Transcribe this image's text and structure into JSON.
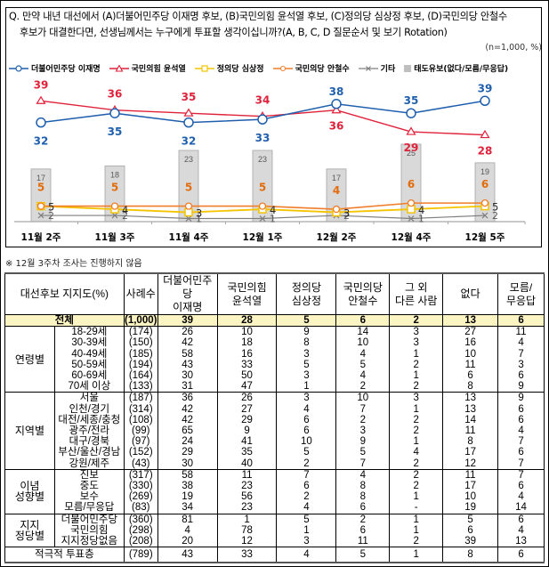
{
  "question": {
    "line1": "Q. 만약 내년 대선에서 (A)더불어민주당 이재명 후보, (B)국민의힘 윤석열 후보, (C)정의당 심상정 후보, (D)국민의당 안철수",
    "line2": "후보가 대결한다면, 선생님께서는 누구에게 투표할 생각이십니까?(A, B, C, D 질문순서 및 보기 Rotation)",
    "sample_note": "(n=1,000, %)"
  },
  "legend": [
    {
      "label": "더불어민주당 이재명",
      "color": "#1f5fad",
      "marker": "circle"
    },
    {
      "label": "국민의힘 윤석열",
      "color": "#e0213a",
      "marker": "triangle"
    },
    {
      "label": "정의당 심상정",
      "color": "#f5c400",
      "marker": "square"
    },
    {
      "label": "국민의당 안철수",
      "color": "#ef7d2a",
      "marker": "circle"
    },
    {
      "label": "기타",
      "color": "#7f7f7f",
      "marker": "x"
    },
    {
      "label": "태도유보(없다/모름/무응답)",
      "color": "#bfbfbf",
      "marker": "bar"
    }
  ],
  "chart_data": {
    "type": "line",
    "title": "",
    "categories": [
      "11월 2주",
      "11월 3주",
      "11월 4주",
      "12월 1주",
      "12월 2주",
      "12월 4주",
      "12월 5주"
    ],
    "series": [
      {
        "name": "더불어민주당 이재명",
        "type": "line",
        "color": "#1f5fad",
        "values": [
          32,
          35,
          32,
          33,
          38,
          35,
          39
        ]
      },
      {
        "name": "국민의힘 윤석열",
        "type": "line",
        "color": "#e0213a",
        "values": [
          39,
          36,
          35,
          34,
          36,
          29,
          28
        ]
      },
      {
        "name": "정의당 심상정",
        "type": "line",
        "color": "#f5c400",
        "values": [
          5,
          4,
          3,
          4,
          3,
          4,
          5
        ]
      },
      {
        "name": "국민의당 안철수",
        "type": "line",
        "color": "#ef7d2a",
        "values": [
          5,
          5,
          5,
          5,
          4,
          6,
          6
        ]
      },
      {
        "name": "기타",
        "type": "line",
        "color": "#7f7f7f",
        "values": [
          2,
          2,
          1,
          1,
          2,
          1,
          2
        ]
      },
      {
        "name": "태도유보(없다/모름/무응답)",
        "type": "bar",
        "color": "#d9d9d9",
        "values": [
          17,
          18,
          23,
          23,
          17,
          25,
          19
        ]
      }
    ],
    "xlabel": "",
    "ylabel": "",
    "grid": false,
    "legend_position": "top",
    "unit": "%"
  },
  "footnote": "※ 12월 3주차 조사는 진행하지 않음",
  "table": {
    "headers": {
      "category": "대선후보 지지도(%)",
      "n": "사례수",
      "lee1": "더불어민주당",
      "lee2": "이재명",
      "yoon1": "국민의힘",
      "yoon2": "윤석열",
      "sim1": "정의당",
      "sim2": "심상정",
      "ahn1": "국민의당",
      "ahn2": "안철수",
      "other1": "그 외",
      "other2": "다른 사람",
      "none": "없다",
      "dk1": "모름/",
      "dk2": "무응답"
    },
    "total": {
      "label": "전체",
      "n": "(1,000)",
      "values": [
        "39",
        "28",
        "5",
        "6",
        "2",
        "13",
        "6"
      ]
    },
    "groups": [
      {
        "name": "연령별",
        "rows": [
          {
            "label": "18-29세",
            "n": "(174)",
            "values": [
              "26",
              "10",
              "9",
              "14",
              "3",
              "27",
              "11"
            ]
          },
          {
            "label": "30-39세",
            "n": "(150)",
            "values": [
              "42",
              "18",
              "8",
              "10",
              "3",
              "16",
              "4"
            ]
          },
          {
            "label": "40-49세",
            "n": "(185)",
            "values": [
              "58",
              "16",
              "3",
              "4",
              "1",
              "10",
              "7"
            ]
          },
          {
            "label": "50-59세",
            "n": "(194)",
            "values": [
              "43",
              "33",
              "5",
              "5",
              "2",
              "11",
              "3"
            ]
          },
          {
            "label": "60-69세",
            "n": "(164)",
            "values": [
              "30",
              "50",
              "3",
              "4",
              "1",
              "6",
              "6"
            ]
          },
          {
            "label": "70세 이상",
            "n": "(133)",
            "values": [
              "31",
              "47",
              "1",
              "2",
              "2",
              "8",
              "9"
            ]
          }
        ]
      },
      {
        "name": "지역별",
        "rows": [
          {
            "label": "서울",
            "n": "(187)",
            "values": [
              "36",
              "26",
              "3",
              "10",
              "3",
              "13",
              "9"
            ]
          },
          {
            "label": "인천/경기",
            "n": "(314)",
            "values": [
              "42",
              "27",
              "4",
              "7",
              "1",
              "13",
              "6"
            ]
          },
          {
            "label": "대전/세종/충청",
            "n": "(108)",
            "values": [
              "42",
              "29",
              "6",
              "2",
              "2",
              "14",
              "6"
            ]
          },
          {
            "label": "광주/전라",
            "n": "(99)",
            "values": [
              "65",
              "9",
              "6",
              "3",
              "2",
              "11",
              "4"
            ]
          },
          {
            "label": "대구/경북",
            "n": "(97)",
            "values": [
              "24",
              "41",
              "10",
              "9",
              "1",
              "8",
              "7"
            ]
          },
          {
            "label": "부산/울산/경남",
            "n": "(152)",
            "values": [
              "29",
              "35",
              "5",
              "5",
              "4",
              "17",
              "6"
            ]
          },
          {
            "label": "강원/제주",
            "n": "(43)",
            "values": [
              "30",
              "40",
              "2",
              "7",
              "2",
              "12",
              "7"
            ]
          }
        ]
      },
      {
        "name1": "이념",
        "name2": "성향별",
        "rows": [
          {
            "label": "진보",
            "n": "(317)",
            "values": [
              "58",
              "11",
              "7",
              "4",
              "2",
              "11",
              "7"
            ]
          },
          {
            "label": "중도",
            "n": "(330)",
            "values": [
              "38",
              "23",
              "6",
              "8",
              "2",
              "17",
              "6"
            ]
          },
          {
            "label": "보수",
            "n": "(269)",
            "values": [
              "19",
              "56",
              "2",
              "8",
              "1",
              "10",
              "4"
            ]
          },
          {
            "label": "모름/무응답",
            "n": "(83)",
            "values": [
              "34",
              "23",
              "4",
              "6",
              "-",
              "19",
              "14"
            ]
          }
        ]
      },
      {
        "name1": "지지",
        "name2": "정당별",
        "rows": [
          {
            "label": "더불어민주당",
            "n": "(360)",
            "values": [
              "81",
              "1",
              "5",
              "2",
              "1",
              "5",
              "6"
            ]
          },
          {
            "label": "국민의힘",
            "n": "(298)",
            "values": [
              "4",
              "78",
              "1",
              "6",
              "1",
              "6",
              "4"
            ]
          },
          {
            "label": "지지정당없음",
            "n": "(208)",
            "values": [
              "20",
              "12",
              "3",
              "11",
              "2",
              "39",
              "13"
            ]
          }
        ]
      }
    ],
    "active": {
      "label": "적극적 투표층",
      "n": "(789)",
      "values": [
        "43",
        "33",
        "4",
        "5",
        "1",
        "8",
        "6"
      ]
    }
  }
}
